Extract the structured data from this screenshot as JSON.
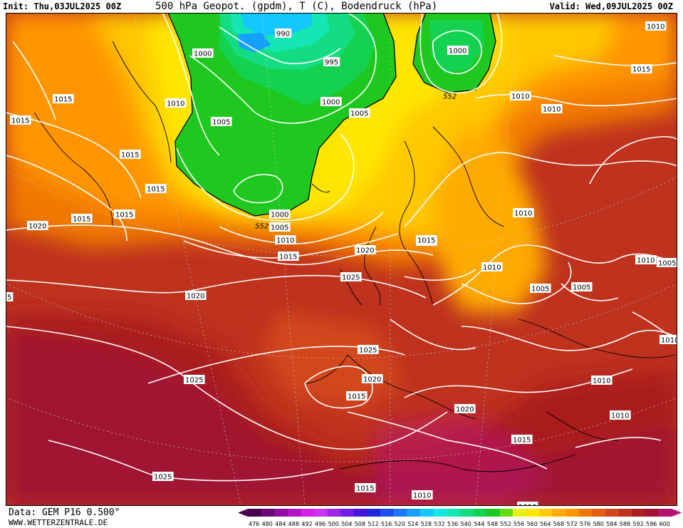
{
  "header": {
    "init": "Init: Thu,03JUL2025 00Z",
    "title": "500 hPa Geopot. (gpdm), T (C), Bodendruck (hPa)",
    "valid": "Valid: Wed,09JUL2025 00Z"
  },
  "footer": {
    "source": "Data: GEM P16 0.500°",
    "website": "WWW.WETTERZENTRALE.DE"
  },
  "legend": {
    "values": [
      "476",
      "480",
      "484",
      "488",
      "492",
      "496",
      "500",
      "504",
      "508",
      "512",
      "516",
      "520",
      "524",
      "528",
      "532",
      "536",
      "540",
      "544",
      "548",
      "552",
      "556",
      "560",
      "564",
      "568",
      "572",
      "576",
      "580",
      "584",
      "588",
      "592",
      "596",
      "600"
    ],
    "colors": [
      "#4a0050",
      "#6a0a78",
      "#8c0fa0",
      "#b414c8",
      "#d21ee6",
      "#c832f0",
      "#9a28e6",
      "#6e1ee6",
      "#4614dc",
      "#1e28dc",
      "#1e50f0",
      "#1e78ff",
      "#14a0ff",
      "#14c8ff",
      "#14e6e6",
      "#14e6b4",
      "#14dc82",
      "#14d250",
      "#1ec81e",
      "#64dc14",
      "#e6f014",
      "#ffe600",
      "#ffc800",
      "#ffaa00",
      "#ff9600",
      "#f07800",
      "#e65a14",
      "#d2461e",
      "#be321e",
      "#aa1e1e",
      "#a01432",
      "#b4146e"
    ]
  },
  "isobar_labels": [
    {
      "text": "1010"
    },
    {
      "text": "1015"
    },
    {
      "text": "1015"
    },
    {
      "text": "1010"
    },
    {
      "text": "1000"
    },
    {
      "text": "990"
    },
    {
      "text": "995"
    },
    {
      "text": "1000"
    },
    {
      "text": "1005"
    },
    {
      "text": "1000"
    },
    {
      "text": "1015"
    },
    {
      "text": "1010"
    },
    {
      "text": "1010"
    },
    {
      "text": "1015"
    },
    {
      "text": "1005"
    },
    {
      "text": "1015"
    },
    {
      "text": "1015"
    },
    {
      "text": "1015"
    },
    {
      "text": "1015"
    },
    {
      "text": "1020"
    },
    {
      "text": "1000"
    },
    {
      "text": "1005"
    },
    {
      "text": "552"
    },
    {
      "text": "1010"
    },
    {
      "text": "1015"
    },
    {
      "text": "1020"
    },
    {
      "text": "1025"
    },
    {
      "text": "1020"
    },
    {
      "text": "1015"
    },
    {
      "text": "1010"
    },
    {
      "text": "1010"
    },
    {
      "text": "1010"
    },
    {
      "text": "1005"
    },
    {
      "text": "1005"
    },
    {
      "text": "1005"
    },
    {
      "text": "1010"
    },
    {
      "text": "1025"
    },
    {
      "text": "1025"
    },
    {
      "text": "1020"
    },
    {
      "text": "1015"
    },
    {
      "text": "1020"
    },
    {
      "text": "1010"
    },
    {
      "text": "1010"
    },
    {
      "text": "1015"
    },
    {
      "text": "1025"
    },
    {
      "text": "1015"
    },
    {
      "text": "1010"
    },
    {
      "text": "1010"
    },
    {
      "text": "552"
    },
    {
      "text": "5"
    }
  ]
}
